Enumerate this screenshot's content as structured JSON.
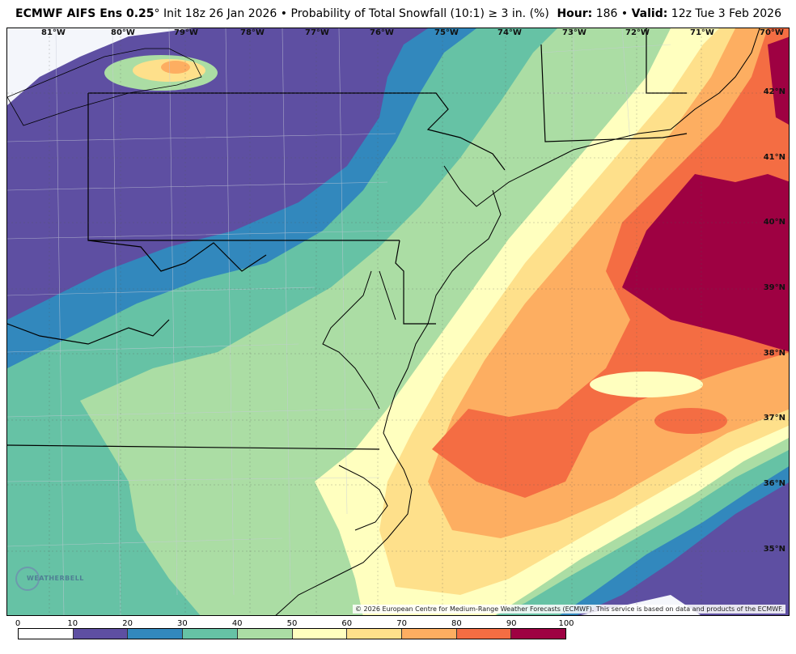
{
  "header": {
    "model": "ECMWF AIFS Ens 0.25",
    "degree": "°",
    "init": "Init 18z 26 Jan 2026",
    "bullet": "•",
    "product": "Probability of Total Snowfall (10:1)",
    "threshold": "≥  3 in. (%)",
    "hour_label": "Hour:",
    "hour_value": "186",
    "valid_label": "Valid:",
    "valid_value": "12z Tue 3 Feb 2026"
  },
  "map": {
    "longitude_labels": [
      "81°W",
      "80°W",
      "79°W",
      "78°W",
      "77°W",
      "76°W",
      "75°W",
      "74°W",
      "73°W",
      "72°W",
      "71°W",
      "70°W"
    ],
    "latitude_labels": [
      "42°N",
      "41°N",
      "40°N",
      "39°N",
      "38°N",
      "37°N",
      "36°N",
      "35°N"
    ],
    "attribution": "© 2026 European Centre for Medium-Range Weather Forecasts (ECMWF). This service is based on data and products of the ECMWF.",
    "logo_text": "WEATHERBELL"
  },
  "colorbar": {
    "ticks": [
      "0",
      "10",
      "20",
      "30",
      "40",
      "50",
      "60",
      "70",
      "80",
      "90",
      "100"
    ],
    "colors": [
      "#ffffff",
      "#5e4fa2",
      "#3288bd",
      "#66c2a5",
      "#abdda4",
      "#ffffbf",
      "#fee08b",
      "#fdae61",
      "#f46d43",
      "#9e0142"
    ]
  }
}
